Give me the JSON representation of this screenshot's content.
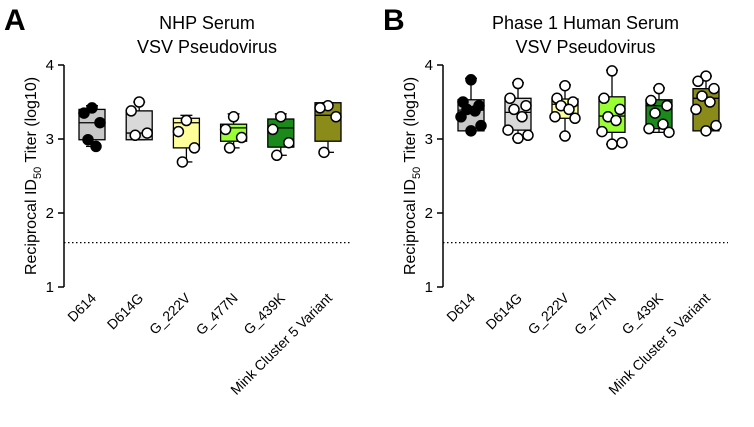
{
  "chart_data": [
    {
      "type": "box",
      "panel": "A",
      "title": [
        "NHP Serum",
        "VSV Pseudovirus"
      ],
      "ylabel": [
        "Reciprocal ID",
        "50",
        " Titer (log10)"
      ],
      "categories": [
        "D614",
        "D614G",
        "G_222V",
        "G_477N",
        "G_439K",
        "Mink Cluster 5 Variant"
      ],
      "colors": [
        "#c8c8c8",
        "#d9d9d9",
        "#ffff99",
        "#99ff33",
        "#1a8a1a",
        "#8b8b1a"
      ],
      "point_colors": [
        "#000000",
        "#ffffff",
        "#ffffff",
        "#ffffff",
        "#ffffff",
        "#ffffff"
      ],
      "boxes": [
        {
          "min": 2.9,
          "q1": 2.99,
          "median": 3.22,
          "q3": 3.4,
          "max": 3.45,
          "points": [
            3.42,
            3.35,
            3.22,
            2.99,
            2.9
          ]
        },
        {
          "min": 2.99,
          "q1": 2.99,
          "median": 3.08,
          "q3": 3.38,
          "max": 3.5,
          "points": [
            3.5,
            3.38,
            3.08,
            3.05
          ]
        },
        {
          "min": 2.69,
          "q1": 2.88,
          "median": 3.22,
          "q3": 3.28,
          "max": 3.32,
          "points": [
            3.25,
            3.1,
            2.88,
            2.69
          ]
        },
        {
          "min": 2.88,
          "q1": 2.97,
          "median": 3.15,
          "q3": 3.2,
          "max": 3.34,
          "points": [
            3.3,
            3.13,
            3.02,
            2.88
          ]
        },
        {
          "min": 2.78,
          "q1": 2.89,
          "median": 3.15,
          "q3": 3.27,
          "max": 3.34,
          "points": [
            3.3,
            3.13,
            2.95,
            2.78
          ]
        },
        {
          "min": 2.82,
          "q1": 2.97,
          "median": 3.32,
          "q3": 3.49,
          "max": 3.49,
          "points": [
            3.45,
            3.42,
            3.3,
            2.82
          ]
        }
      ],
      "ylim": [
        1,
        4
      ],
      "yticks": [
        1,
        2,
        3,
        4
      ],
      "threshold": 1.6
    },
    {
      "type": "box",
      "panel": "B",
      "title": [
        "Phase 1 Human Serum",
        "VSV Pseudovirus"
      ],
      "ylabel": [
        "Reciprocal ID",
        "50",
        " Titer (log10)"
      ],
      "categories": [
        "D614",
        "D614G",
        "G_222V",
        "G_477N",
        "G_439K",
        "Mink Cluster 5 Variant"
      ],
      "colors": [
        "#c8c8c8",
        "#d9d9d9",
        "#ffff99",
        "#99ff33",
        "#1a8a1a",
        "#8b8b1a"
      ],
      "point_colors": [
        "#000000",
        "#ffffff",
        "#ffffff",
        "#ffffff",
        "#ffffff",
        "#ffffff"
      ],
      "boxes": [
        {
          "min": 3.11,
          "q1": 3.11,
          "median": 3.39,
          "q3": 3.53,
          "max": 3.82,
          "points": [
            3.8,
            3.5,
            3.45,
            3.4,
            3.38,
            3.3,
            3.18,
            3.11
          ]
        },
        {
          "min": 3.01,
          "q1": 3.12,
          "median": 3.36,
          "q3": 3.55,
          "max": 3.76,
          "points": [
            3.75,
            3.55,
            3.45,
            3.4,
            3.3,
            3.12,
            3.05,
            3.01
          ]
        },
        {
          "min": 3.04,
          "q1": 3.28,
          "median": 3.47,
          "q3": 3.54,
          "max": 3.73,
          "points": [
            3.72,
            3.55,
            3.5,
            3.45,
            3.4,
            3.3,
            3.28,
            3.04
          ]
        },
        {
          "min": 2.93,
          "q1": 3.09,
          "median": 3.31,
          "q3": 3.57,
          "max": 3.93,
          "points": [
            3.92,
            3.55,
            3.4,
            3.3,
            3.25,
            3.1,
            2.95,
            2.93
          ]
        },
        {
          "min": 3.09,
          "q1": 3.14,
          "median": 3.45,
          "q3": 3.53,
          "max": 3.69,
          "points": [
            3.68,
            3.52,
            3.45,
            3.35,
            3.2,
            3.14,
            3.09
          ]
        },
        {
          "min": 3.11,
          "q1": 3.11,
          "median": 3.55,
          "q3": 3.68,
          "max": 3.85,
          "points": [
            3.85,
            3.78,
            3.68,
            3.58,
            3.5,
            3.4,
            3.18,
            3.11
          ]
        }
      ],
      "ylim": [
        1,
        4
      ],
      "yticks": [
        1,
        2,
        3,
        4
      ],
      "threshold": 1.6
    }
  ]
}
